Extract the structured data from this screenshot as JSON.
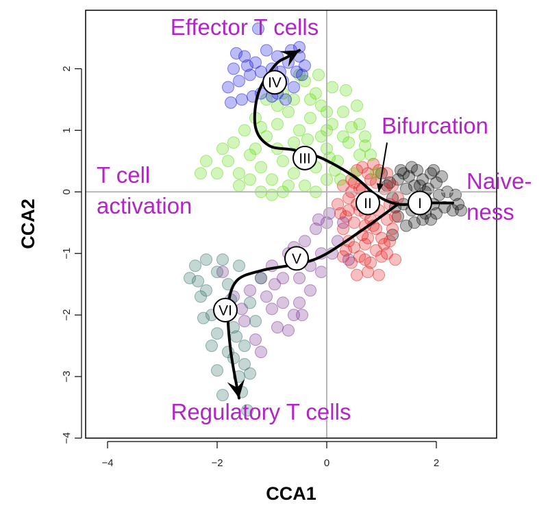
{
  "chart_data": {
    "type": "scatter",
    "xlabel": "CCA1",
    "ylabel": "CCA2",
    "xlim": [
      -4.4,
      3.1
    ],
    "ylim": [
      -4.0,
      2.95
    ],
    "xticks": [
      -4,
      -2,
      0,
      2
    ],
    "yticks": [
      -4,
      -3,
      -2,
      -1,
      0,
      1,
      2
    ],
    "xtick_labels": [
      "−4",
      "−2",
      "0",
      "2"
    ],
    "ytick_labels": [
      "−4",
      "−3",
      "−2",
      "−1",
      "0",
      "1",
      "2"
    ],
    "reference_lines": {
      "x": 0,
      "y": 0
    },
    "annotation_color": "#b324c8",
    "annotations": [
      {
        "lines": [
          "Effector T cells"
        ],
        "x": -1.5,
        "y": 2.55,
        "anchor": "middle"
      },
      {
        "lines": [
          "Bifurcation"
        ],
        "x": 1.0,
        "y": 0.95,
        "anchor": "start"
      },
      {
        "lines": [
          "T cell",
          "activation"
        ],
        "x": -4.2,
        "y": 0.15,
        "anchor": "start"
      },
      {
        "lines": [
          "Naive-",
          "ness"
        ],
        "x": 2.55,
        "y": 0.05,
        "anchor": "start"
      },
      {
        "lines": [
          "Regulatory T cells"
        ],
        "x": -1.2,
        "y": -3.7,
        "anchor": "middle"
      }
    ],
    "bifurcation_arrow": {
      "from": [
        1.1,
        0.8
      ],
      "to": [
        0.95,
        0.0
      ]
    },
    "series": [
      {
        "color": "#000000",
        "points": [
          [
            1.0,
            0.3
          ],
          [
            1.1,
            0.1
          ],
          [
            1.2,
            -0.1
          ],
          [
            1.3,
            0.2
          ],
          [
            1.35,
            0.35
          ],
          [
            1.4,
            -0.2
          ],
          [
            1.45,
            0.05
          ],
          [
            1.5,
            0.25
          ],
          [
            1.55,
            -0.3
          ],
          [
            1.6,
            0.1
          ],
          [
            1.65,
            0.35
          ],
          [
            1.7,
            -0.1
          ],
          [
            1.75,
            0.2
          ],
          [
            1.8,
            -0.35
          ],
          [
            1.85,
            0.05
          ],
          [
            1.9,
            0.3
          ],
          [
            1.95,
            -0.2
          ],
          [
            2.0,
            0.15
          ],
          [
            2.05,
            -0.05
          ],
          [
            2.1,
            0.25
          ],
          [
            2.15,
            -0.25
          ],
          [
            2.2,
            0.0
          ],
          [
            1.3,
            -0.4
          ],
          [
            1.45,
            -0.55
          ],
          [
            1.6,
            -0.5
          ],
          [
            1.75,
            -0.45
          ],
          [
            1.2,
            -0.7
          ],
          [
            1.9,
            -0.45
          ],
          [
            2.3,
            -0.3
          ],
          [
            2.35,
            -0.05
          ],
          [
            2.4,
            -0.2
          ],
          [
            2.45,
            -0.3
          ],
          [
            1.15,
            0.15
          ],
          [
            1.55,
            0.4
          ],
          [
            1.7,
            0.1
          ],
          [
            1.8,
            0.0
          ],
          [
            1.4,
            0.3
          ],
          [
            2.0,
            -0.35
          ],
          [
            1.95,
            0.35
          ],
          [
            1.25,
            -0.25
          ]
        ]
      },
      {
        "color": "#e11a1a",
        "points": [
          [
            0.2,
            -0.2
          ],
          [
            0.3,
            0.1
          ],
          [
            0.35,
            -0.4
          ],
          [
            0.4,
            -0.1
          ],
          [
            0.45,
            0.2
          ],
          [
            0.5,
            -0.5
          ],
          [
            0.55,
            -0.2
          ],
          [
            0.6,
            0.05
          ],
          [
            0.65,
            -0.7
          ],
          [
            0.7,
            -0.35
          ],
          [
            0.75,
            0.3
          ],
          [
            0.8,
            -0.1
          ],
          [
            0.85,
            -0.55
          ],
          [
            0.9,
            0.15
          ],
          [
            0.95,
            -0.3
          ],
          [
            1.0,
            -0.75
          ],
          [
            1.05,
            0.05
          ],
          [
            1.1,
            -0.45
          ],
          [
            1.15,
            -0.2
          ],
          [
            1.2,
            -0.6
          ],
          [
            0.5,
            -0.9
          ],
          [
            0.6,
            -1.05
          ],
          [
            0.7,
            -0.85
          ],
          [
            0.8,
            -1.15
          ],
          [
            0.9,
            -0.95
          ],
          [
            1.0,
            -1.05
          ],
          [
            0.45,
            -1.15
          ],
          [
            0.75,
            -1.3
          ],
          [
            0.3,
            -0.6
          ],
          [
            0.4,
            -0.8
          ],
          [
            0.95,
            0.35
          ],
          [
            0.85,
            0.45
          ],
          [
            0.65,
            0.4
          ],
          [
            1.1,
            0.3
          ],
          [
            0.55,
            0.35
          ],
          [
            1.1,
            -1.0
          ],
          [
            0.35,
            -0.95
          ],
          [
            0.7,
            -0.55
          ],
          [
            1.25,
            -0.4
          ],
          [
            1.15,
            -0.8
          ],
          [
            0.25,
            -0.35
          ],
          [
            0.55,
            -1.35
          ],
          [
            0.9,
            -0.6
          ],
          [
            0.8,
            0.2
          ],
          [
            0.6,
            -0.3
          ],
          [
            1.3,
            -0.1
          ],
          [
            1.25,
            -1.1
          ],
          [
            0.45,
            0.0
          ],
          [
            0.95,
            -1.35
          ],
          [
            0.65,
            0.05
          ],
          [
            1.05,
            -0.85
          ],
          [
            0.85,
            -0.25
          ],
          [
            0.75,
            -0.75
          ],
          [
            0.4,
            -0.3
          ],
          [
            1.2,
            0.1
          ],
          [
            0.3,
            -1.05
          ],
          [
            0.8,
            -0.45
          ],
          [
            0.5,
            0.15
          ],
          [
            0.7,
            -1.1
          ]
        ]
      },
      {
        "color": "#5bdc08",
        "points": [
          [
            -1.8,
            0.5
          ],
          [
            -1.6,
            0.3
          ],
          [
            -1.4,
            0.6
          ],
          [
            -1.2,
            0.4
          ],
          [
            -1.0,
            0.2
          ],
          [
            -0.8,
            0.5
          ],
          [
            -0.6,
            0.3
          ],
          [
            -0.4,
            0.6
          ],
          [
            -0.2,
            0.4
          ],
          [
            0.0,
            0.7
          ],
          [
            0.2,
            0.5
          ],
          [
            0.4,
            0.8
          ],
          [
            0.6,
            0.6
          ],
          [
            -1.5,
            1.0
          ],
          [
            -1.3,
            1.2
          ],
          [
            -1.1,
            0.9
          ],
          [
            -0.9,
            1.1
          ],
          [
            -0.7,
            1.3
          ],
          [
            -0.5,
            1.0
          ],
          [
            -0.3,
            1.2
          ],
          [
            -0.1,
            1.4
          ],
          [
            0.1,
            1.1
          ],
          [
            0.3,
            1.3
          ],
          [
            -0.8,
            1.6
          ],
          [
            -0.6,
            1.5
          ],
          [
            -0.4,
            1.8
          ],
          [
            -0.2,
            1.6
          ],
          [
            0.1,
            1.7
          ],
          [
            -1.6,
            0.1
          ],
          [
            -1.2,
            0.0
          ],
          [
            -0.8,
            0.0
          ],
          [
            -0.4,
            0.1
          ],
          [
            0.0,
            0.2
          ],
          [
            -0.2,
            0.0
          ],
          [
            -2.0,
            0.3
          ],
          [
            -2.2,
            0.5
          ],
          [
            -1.9,
            0.7
          ],
          [
            -0.9,
            0.7
          ],
          [
            -0.5,
            0.5
          ],
          [
            0.0,
            1.0
          ],
          [
            0.3,
            0.9
          ],
          [
            0.5,
            0.3
          ],
          [
            0.7,
            0.9
          ],
          [
            0.55,
            1.4
          ],
          [
            0.8,
            0.6
          ],
          [
            -1.1,
            1.5
          ],
          [
            -0.1,
            0.9
          ],
          [
            -0.6,
            0.8
          ],
          [
            -1.3,
            0.7
          ],
          [
            -2.3,
            0.3
          ],
          [
            0.25,
            0.2
          ],
          [
            -0.3,
            1.5
          ],
          [
            0.45,
            1.05
          ],
          [
            -0.7,
            0.1
          ],
          [
            0.15,
            0.35
          ],
          [
            -1.4,
            0.2
          ],
          [
            -0.9,
            1.4
          ],
          [
            0.6,
            1.1
          ],
          [
            -0.5,
            1.9
          ],
          [
            0.05,
            0.55
          ],
          [
            -1.7,
            0.8
          ],
          [
            0.35,
            1.65
          ],
          [
            -0.15,
            1.9
          ],
          [
            0.9,
            0.3
          ],
          [
            -1.0,
            -0.05
          ],
          [
            -0.35,
            0.85
          ],
          [
            0.7,
            0.75
          ],
          [
            -1.2,
            1.05
          ],
          [
            0.0,
            1.3
          ]
        ]
      },
      {
        "color": "#1010dd",
        "points": [
          [
            -1.8,
            1.7
          ],
          [
            -1.7,
            2.0
          ],
          [
            -1.6,
            1.8
          ],
          [
            -1.5,
            2.2
          ],
          [
            -1.4,
            1.9
          ],
          [
            -1.3,
            2.1
          ],
          [
            -1.2,
            1.6
          ],
          [
            -1.1,
            2.3
          ],
          [
            -1.0,
            2.0
          ],
          [
            -0.9,
            2.2
          ],
          [
            -0.8,
            1.8
          ],
          [
            -0.7,
            2.1
          ],
          [
            -0.6,
            1.7
          ],
          [
            -0.5,
            2.2
          ],
          [
            -0.45,
            1.9
          ],
          [
            -0.4,
            2.05
          ],
          [
            -0.5,
            2.35
          ],
          [
            -0.65,
            2.3
          ],
          [
            -0.9,
            1.6
          ],
          [
            -1.05,
            1.75
          ],
          [
            -1.45,
            2.05
          ],
          [
            -1.75,
            1.45
          ],
          [
            -1.55,
            1.5
          ],
          [
            -1.35,
            1.55
          ],
          [
            -0.75,
            1.5
          ],
          [
            -1.2,
            1.95
          ],
          [
            -0.85,
            1.95
          ],
          [
            -0.55,
            1.95
          ],
          [
            -1.65,
            2.25
          ],
          [
            -1.0,
            1.55
          ],
          [
            -1.25,
            2.65
          ]
        ]
      },
      {
        "color": "#7a2e93",
        "points": [
          [
            -1.4,
            -1.6
          ],
          [
            -1.2,
            -1.4
          ],
          [
            -1.0,
            -1.2
          ],
          [
            -0.8,
            -1.8
          ],
          [
            -0.7,
            -1.0
          ],
          [
            -0.5,
            -1.4
          ],
          [
            -0.4,
            -0.8
          ],
          [
            -0.3,
            -1.2
          ],
          [
            -0.2,
            -0.6
          ],
          [
            -0.1,
            -1.0
          ],
          [
            0.0,
            -0.5
          ],
          [
            0.1,
            -1.0
          ],
          [
            -0.6,
            -2.0
          ],
          [
            -0.9,
            -2.2
          ],
          [
            -1.1,
            -1.7
          ],
          [
            -1.3,
            -2.4
          ],
          [
            -1.5,
            -2.1
          ],
          [
            -0.3,
            -1.6
          ],
          [
            -0.5,
            -1.8
          ],
          [
            0.2,
            -0.8
          ],
          [
            0.3,
            -0.5
          ],
          [
            -0.1,
            -1.3
          ],
          [
            -0.8,
            -1.4
          ],
          [
            -1.0,
            -1.9
          ],
          [
            -1.2,
            -2.6
          ],
          [
            -0.6,
            -0.9
          ],
          [
            -1.7,
            -1.7
          ],
          [
            0.4,
            -1.1
          ],
          [
            -0.45,
            -2.0
          ],
          [
            -0.95,
            -1.5
          ],
          [
            0.05,
            -0.35
          ],
          [
            -1.9,
            -1.3
          ],
          [
            -1.55,
            -1.9
          ],
          [
            -0.15,
            -0.45
          ],
          [
            -0.7,
            -2.25
          ]
        ]
      },
      {
        "color": "#2f6e66",
        "points": [
          [
            -2.5,
            -1.4
          ],
          [
            -2.3,
            -1.7
          ],
          [
            -2.2,
            -1.1
          ],
          [
            -2.1,
            -2.0
          ],
          [
            -2.0,
            -1.3
          ],
          [
            -1.9,
            -1.9
          ],
          [
            -1.8,
            -1.5
          ],
          [
            -1.7,
            -2.2
          ],
          [
            -1.6,
            -1.2
          ],
          [
            -1.5,
            -2.5
          ],
          [
            -1.4,
            -1.8
          ],
          [
            -1.3,
            -2.1
          ],
          [
            -1.2,
            -1.4
          ],
          [
            -2.4,
            -1.2
          ],
          [
            -2.0,
            -2.3
          ],
          [
            -1.8,
            -2.6
          ],
          [
            -1.6,
            -3.0
          ],
          [
            -1.7,
            -2.7
          ],
          [
            -2.0,
            -2.9
          ],
          [
            -1.9,
            -3.3
          ],
          [
            -1.5,
            -2.8
          ],
          [
            -2.2,
            -1.6
          ],
          [
            -1.9,
            -1.1
          ],
          [
            -1.75,
            -1.75
          ],
          [
            -2.1,
            -2.5
          ],
          [
            -1.45,
            -3.55
          ],
          [
            -1.55,
            -3.25
          ],
          [
            -2.25,
            -2.05
          ],
          [
            -1.65,
            -2.35
          ],
          [
            -2.35,
            -1.45
          ],
          [
            -1.4,
            -2.95
          ]
        ]
      }
    ],
    "trajectories": [
      {
        "points": [
          [
            2.3,
            -0.18
          ],
          [
            1.8,
            -0.18
          ],
          [
            1.3,
            -0.2
          ],
          [
            0.9,
            -0.05
          ],
          [
            0.5,
            0.25
          ],
          [
            -0.1,
            0.55
          ],
          [
            -0.6,
            0.68
          ],
          [
            -1.05,
            0.75
          ],
          [
            -1.3,
            1.05
          ],
          [
            -1.25,
            1.6
          ],
          [
            -0.95,
            2.05
          ],
          [
            -0.7,
            2.2
          ],
          [
            -0.5,
            2.3
          ]
        ]
      },
      {
        "points": [
          [
            1.3,
            -0.2
          ],
          [
            0.6,
            -0.65
          ],
          [
            -0.1,
            -1.05
          ],
          [
            -0.6,
            -1.18
          ],
          [
            -1.2,
            -1.28
          ],
          [
            -1.65,
            -1.45
          ],
          [
            -1.8,
            -1.9
          ],
          [
            -1.75,
            -2.6
          ],
          [
            -1.6,
            -3.35
          ]
        ]
      }
    ],
    "stages": [
      {
        "label": "I",
        "x": 1.7,
        "y": -0.18
      },
      {
        "label": "II",
        "x": 0.75,
        "y": -0.18
      },
      {
        "label": "III",
        "x": -0.4,
        "y": 0.55
      },
      {
        "label": "IV",
        "x": -0.95,
        "y": 1.78
      },
      {
        "label": "V",
        "x": -0.55,
        "y": -1.08
      },
      {
        "label": "VI",
        "x": -1.85,
        "y": -1.92
      }
    ]
  }
}
